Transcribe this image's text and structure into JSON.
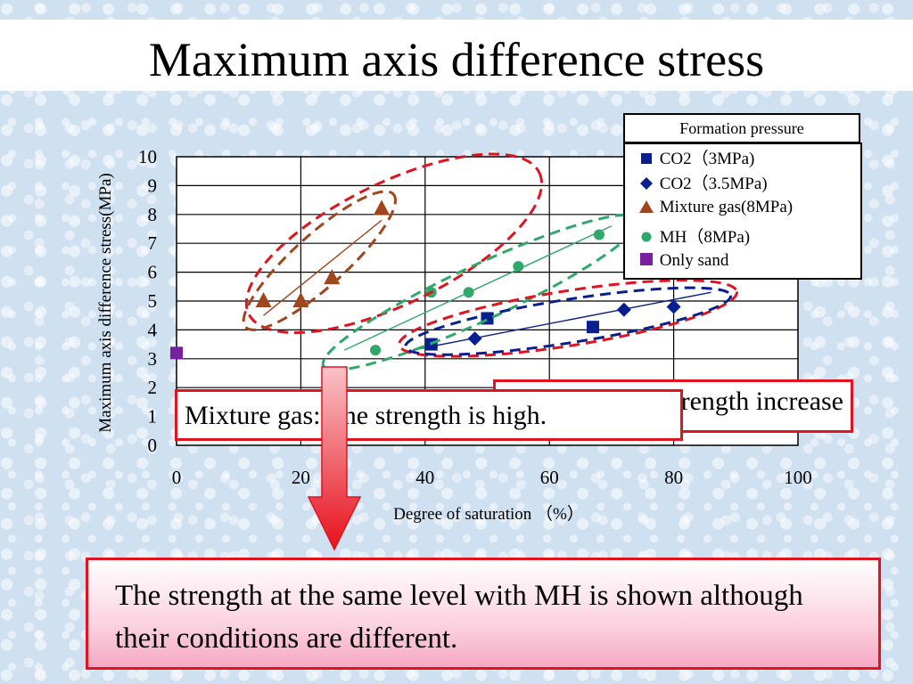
{
  "slide": {
    "title": "Maximum axis difference stress"
  },
  "legend": {
    "title": "Formation pressure",
    "items": [
      {
        "label": "CO2（3MPa)",
        "symbol": "square",
        "color": "#0a1f8f"
      },
      {
        "label": "CO2（3.5MPa)",
        "symbol": "diamond",
        "color": "#0a1f8f"
      },
      {
        "label": "Mixture gas(8MPa)",
        "symbol": "triangle",
        "color": "#a0461e"
      },
      {
        "label": "MH（8MPa)",
        "symbol": "circle",
        "color": "#2fa86a"
      },
      {
        "label": "Only sand",
        "symbol": "square",
        "color": "#7b1fa2"
      }
    ]
  },
  "callouts": {
    "right": "Strength increase",
    "left": "Mixture gas: The strength is high."
  },
  "bottom_text": "The strength at the same level with MH is shown although their conditions are different.",
  "chart_data": {
    "type": "scatter",
    "xlabel": "Degree of saturation （%）",
    "ylabel": "Maximum axis difference stress(MPa)",
    "xlim": [
      0,
      100
    ],
    "ylim": [
      0,
      10
    ],
    "xticks": [
      0,
      20,
      40,
      60,
      80,
      100
    ],
    "yticks": [
      0,
      1,
      2,
      3,
      4,
      5,
      6,
      7,
      8,
      9,
      10
    ],
    "grid": true,
    "legend_position": "top-right",
    "series": [
      {
        "name": "CO2（3MPa)",
        "marker": "square",
        "color": "#0a1f8f",
        "points": [
          [
            41,
            3.5
          ],
          [
            50,
            4.4
          ],
          [
            67,
            4.1
          ]
        ]
      },
      {
        "name": "CO2（3.5MPa)",
        "marker": "diamond",
        "color": "#0a1f8f",
        "points": [
          [
            48,
            3.7
          ],
          [
            72,
            4.7
          ],
          [
            80,
            4.8
          ]
        ]
      },
      {
        "name": "Mixture gas(8MPa)",
        "marker": "triangle",
        "color": "#a0461e",
        "points": [
          [
            14,
            5.0
          ],
          [
            20,
            5.0
          ],
          [
            25,
            5.8
          ],
          [
            33,
            8.2
          ]
        ]
      },
      {
        "name": "MH（8MPa)",
        "marker": "circle",
        "color": "#2fa86a",
        "points": [
          [
            32,
            3.3
          ],
          [
            41,
            5.3
          ],
          [
            47,
            5.3
          ],
          [
            55,
            6.2
          ],
          [
            68,
            7.3
          ]
        ]
      },
      {
        "name": "Only sand",
        "marker": "square",
        "color": "#7b1fa2",
        "points": [
          [
            0,
            3.2
          ]
        ]
      }
    ],
    "trendlines": [
      {
        "series": "Mixture gas(8MPa)",
        "color": "#a0461e",
        "from": [
          14,
          4.5
        ],
        "to": [
          33,
          7.8
        ]
      },
      {
        "series": "MH（8MPa)",
        "color": "#2fa86a",
        "from": [
          27,
          3.3
        ],
        "to": [
          70,
          7.6
        ]
      },
      {
        "series": "CO2",
        "color": "#0a1f8f",
        "from": [
          38,
          3.3
        ],
        "to": [
          86,
          5.3
        ]
      }
    ],
    "ellipses": [
      {
        "color": "#e0141e",
        "cx": 35,
        "cy": 7.0,
        "rx": 26,
        "ry": 2.1,
        "angle_deg": -26
      },
      {
        "color": "#a0461e",
        "cx": 23,
        "cy": 6.4,
        "rx": 16,
        "ry": 0.9,
        "angle_deg": -42
      },
      {
        "color": "#2fa86a",
        "cx": 49,
        "cy": 5.3,
        "rx": 28,
        "ry": 0.95,
        "angle_deg": -25
      },
      {
        "color": "#e0141e",
        "cx": 63,
        "cy": 4.4,
        "rx": 27.5,
        "ry": 0.95,
        "angle_deg": -9
      },
      {
        "color": "#0a1f8f",
        "cx": 63,
        "cy": 4.3,
        "rx": 26.5,
        "ry": 0.75,
        "angle_deg": -9
      }
    ]
  }
}
